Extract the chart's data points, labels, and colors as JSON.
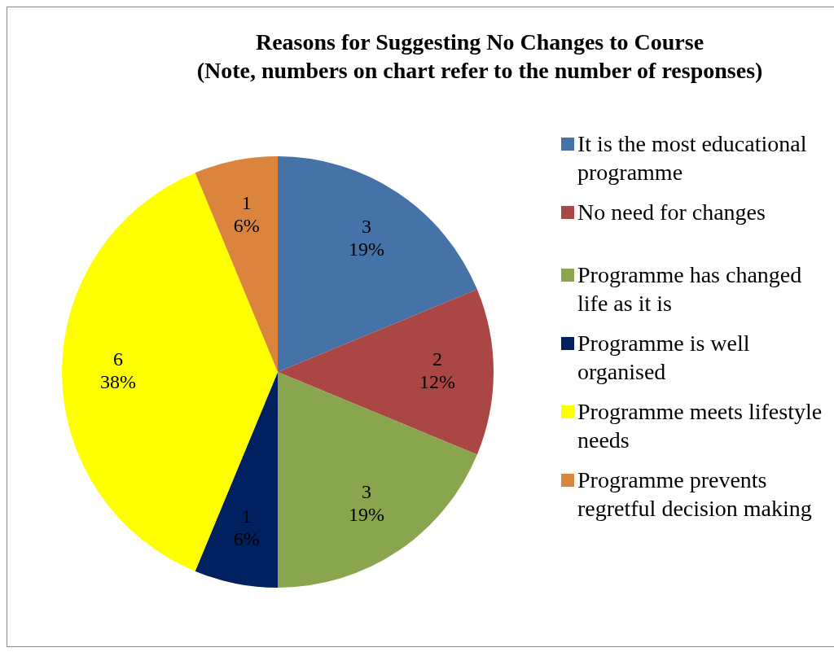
{
  "chart_data": {
    "type": "pie",
    "title": "Reasons for Suggesting No Changes to Course\n(Note, numbers on chart refer to the number of responses)",
    "categories": [
      "It is the most educational programme",
      "No need for changes",
      "Programme has changed life as it is",
      "Programme is well organised",
      "Programme meets lifestyle needs",
      "Programme prevents regretful decision making"
    ],
    "values": [
      3,
      2,
      3,
      1,
      6,
      1
    ],
    "colors": [
      "#4572a7",
      "#aa4643",
      "#89a54e",
      "#002060",
      "#ffff00",
      "#db843d"
    ],
    "value_labels": [
      "3\n19%",
      "2\n12%",
      "3\n19%",
      "1\n6%",
      "6\n38%",
      "1\n6%"
    ],
    "legend": "right"
  }
}
